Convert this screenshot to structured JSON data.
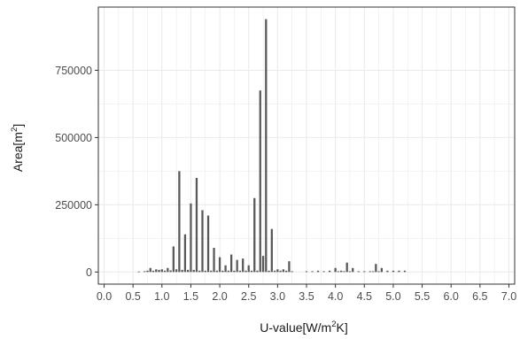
{
  "chart_data": {
    "type": "bar",
    "title": "",
    "xlabel": {
      "prefix": "U-value[W/m",
      "sup": "2",
      "suffix": "K]"
    },
    "ylabel": {
      "prefix": "Area[m",
      "sup": "2",
      "suffix": "]"
    },
    "xlim": [
      -0.1,
      7.1
    ],
    "ylim": [
      -45000,
      985000
    ],
    "x_ticks": [
      0.0,
      0.5,
      1.0,
      1.5,
      2.0,
      2.5,
      3.0,
      3.5,
      4.0,
      4.5,
      5.0,
      5.5,
      6.0,
      6.5,
      7.0
    ],
    "x_tick_labels": [
      "0.0",
      "0.5",
      "1.0",
      "1.5",
      "2.0",
      "2.5",
      "3.0",
      "3.5",
      "4.0",
      "4.5",
      "5.0",
      "5.5",
      "6.0",
      "6.5",
      "7.0"
    ],
    "y_ticks": [
      0,
      250000,
      500000,
      750000
    ],
    "y_tick_labels": [
      "0",
      "250000",
      "500000",
      "750000"
    ],
    "bar_width": 0.035,
    "bar_color": "#595959",
    "panel_background": "#ffffff",
    "grid_color": "#ebebeb",
    "grid": true,
    "theme": "bw",
    "x": [
      0.6,
      0.7,
      0.75,
      0.8,
      0.85,
      0.9,
      0.95,
      1.0,
      1.05,
      1.1,
      1.15,
      1.2,
      1.25,
      1.3,
      1.35,
      1.4,
      1.45,
      1.5,
      1.55,
      1.6,
      1.65,
      1.7,
      1.75,
      1.8,
      1.85,
      1.9,
      1.95,
      2.0,
      2.05,
      2.1,
      2.15,
      2.2,
      2.25,
      2.3,
      2.35,
      2.4,
      2.45,
      2.5,
      2.55,
      2.6,
      2.65,
      2.7,
      2.75,
      2.8,
      2.85,
      2.9,
      2.95,
      3.0,
      3.05,
      3.1,
      3.15,
      3.2,
      3.25,
      3.5,
      3.6,
      3.7,
      3.8,
      3.9,
      4.0,
      4.05,
      4.1,
      4.15,
      4.2,
      4.25,
      4.3,
      4.4,
      4.5,
      4.6,
      4.65,
      4.7,
      4.75,
      4.8,
      4.9,
      5.0,
      5.1,
      5.2
    ],
    "values": [
      2000,
      3000,
      5000,
      15000,
      5000,
      10000,
      8000,
      10000,
      5000,
      15000,
      6000,
      95000,
      10000,
      375000,
      8000,
      140000,
      8000,
      255000,
      8000,
      350000,
      5000,
      230000,
      5000,
      210000,
      5000,
      90000,
      5000,
      55000,
      5000,
      25000,
      5000,
      65000,
      5000,
      45000,
      5000,
      50000,
      5000,
      25000,
      5000,
      275000,
      5000,
      675000,
      60000,
      940000,
      5000,
      160000,
      5000,
      10000,
      5000,
      10000,
      5000,
      40000,
      3000,
      3000,
      3000,
      5000,
      3000,
      5000,
      15000,
      3000,
      5000,
      3000,
      35000,
      3000,
      15000,
      3000,
      3000,
      3000,
      3000,
      30000,
      3000,
      15000,
      5000,
      5000,
      5000,
      5000
    ]
  }
}
